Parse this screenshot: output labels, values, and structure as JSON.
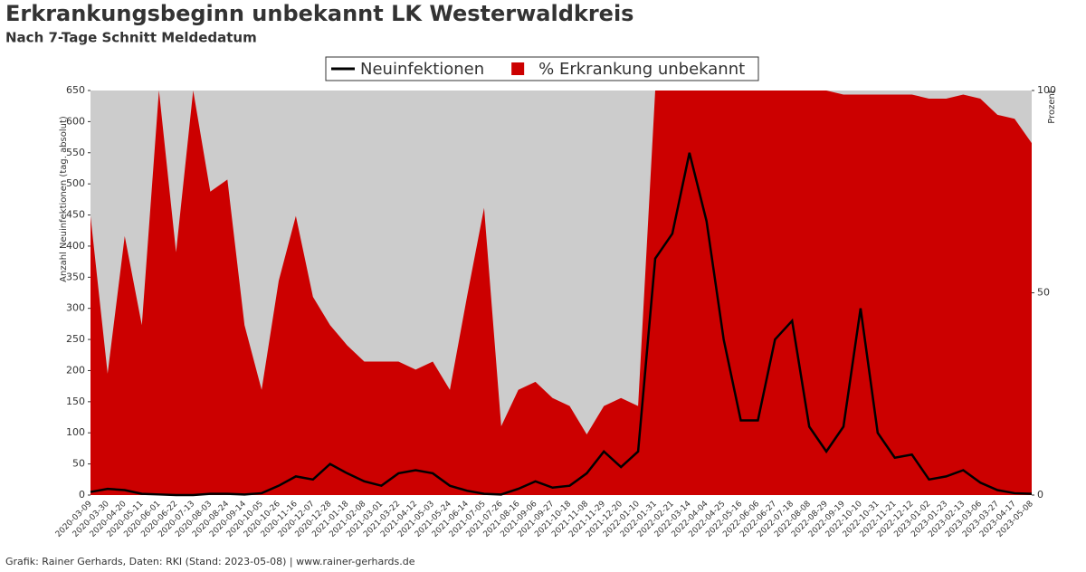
{
  "chart_data": {
    "type": "line",
    "title": "Erkrankungsbeginn unbekannt LK Westerwaldkreis",
    "subtitle": "Nach 7-Tage Schnitt Meldedatum",
    "ylabel": "Anzahl Neuinfektionen (tag. absolut)",
    "y2label": "Prozent",
    "footer": "Grafik: Rainer Gerhards, Daten: RKI (Stand: 2023-05-08) | www.rainer-gerhards.de",
    "legend": "top",
    "x": [
      "2020-03-09",
      "2020-03-30",
      "2020-04-20",
      "2020-05-11",
      "2020-06-01",
      "2020-06-22",
      "2020-07-13",
      "2020-08-03",
      "2020-08-24",
      "2020-09-14",
      "2020-10-05",
      "2020-10-26",
      "2020-11-16",
      "2020-12-07",
      "2020-12-28",
      "2021-01-18",
      "2021-02-08",
      "2021-03-01",
      "2021-03-22",
      "2021-04-12",
      "2021-05-03",
      "2021-05-24",
      "2021-06-14",
      "2021-07-05",
      "2021-07-26",
      "2021-08-16",
      "2021-09-06",
      "2021-09-27",
      "2021-10-18",
      "2021-11-08",
      "2021-11-29",
      "2021-12-20",
      "2022-01-10",
      "2022-01-31",
      "2022-02-21",
      "2022-03-14",
      "2022-04-04",
      "2022-04-25",
      "2022-05-16",
      "2022-06-06",
      "2022-06-27",
      "2022-07-18",
      "2022-08-08",
      "2022-08-29",
      "2022-09-19",
      "2022-10-10",
      "2022-10-31",
      "2022-11-21",
      "2022-12-12",
      "2023-01-02",
      "2023-01-23",
      "2023-02-13",
      "2023-03-06",
      "2023-03-27",
      "2023-04-17",
      "2023-05-08"
    ],
    "series": [
      {
        "name": "% Erkrankung unbekannt",
        "color": "#cc0000",
        "axis": "y2",
        "kind": "area",
        "values": [
          69,
          30,
          64,
          42,
          100,
          60,
          100,
          75,
          78,
          42,
          26,
          53,
          69,
          49,
          42,
          37,
          33,
          33,
          33,
          31,
          33,
          26,
          49,
          71,
          17,
          26,
          28,
          24,
          22,
          15,
          22,
          24,
          22,
          100,
          100,
          100,
          100,
          100,
          100,
          100,
          100,
          100,
          100,
          100,
          99,
          99,
          99,
          99,
          99,
          98,
          98,
          99,
          98,
          94,
          93,
          87
        ]
      },
      {
        "name": "Neuinfektionen",
        "color": "#000000",
        "kind": "line",
        "values": [
          5,
          10,
          8,
          2,
          1,
          0,
          0,
          2,
          2,
          1,
          3,
          15,
          30,
          25,
          50,
          35,
          22,
          15,
          35,
          40,
          35,
          15,
          7,
          2,
          1,
          10,
          22,
          12,
          15,
          35,
          70,
          45,
          70,
          380,
          420,
          550,
          440,
          250,
          120,
          120,
          250,
          280,
          110,
          70,
          110,
          300,
          100,
          60,
          65,
          25,
          30,
          40,
          20,
          8,
          3,
          2
        ]
      }
    ],
    "ylim": [
      0,
      650
    ],
    "yticks": [
      0,
      50,
      100,
      150,
      200,
      250,
      300,
      350,
      400,
      450,
      500,
      550,
      600,
      650
    ],
    "y2lim": [
      0,
      100
    ],
    "y2ticks": [
      0,
      50,
      100
    ]
  }
}
